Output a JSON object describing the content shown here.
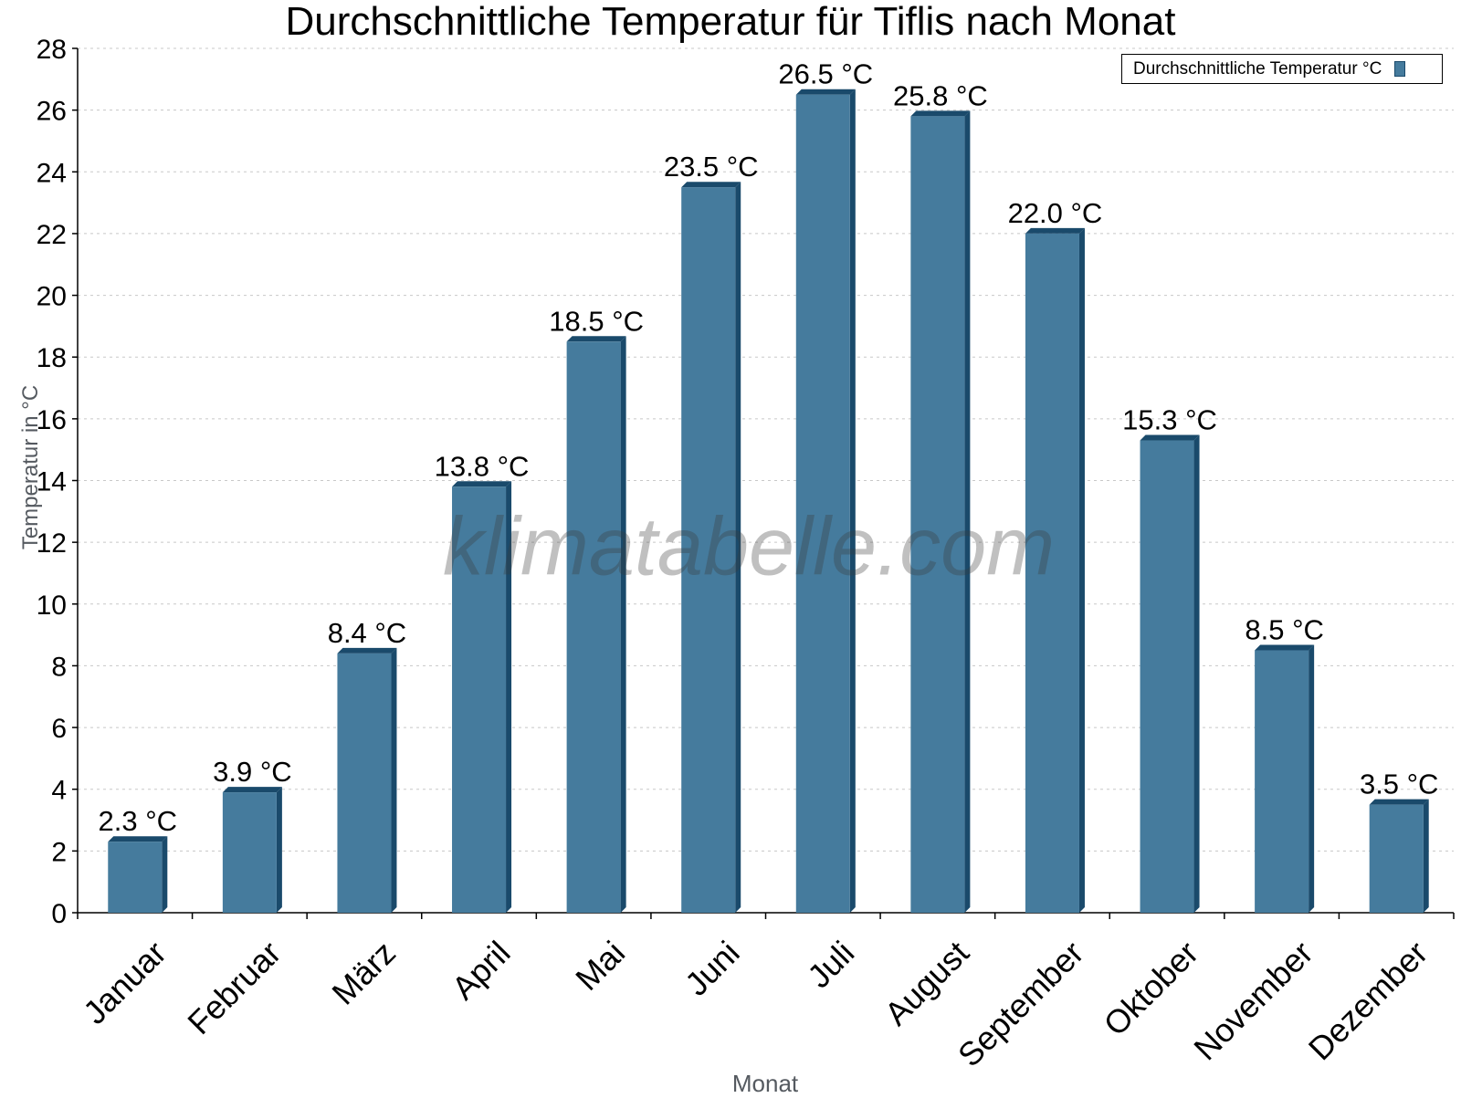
{
  "chart_data": {
    "type": "bar",
    "title": "Durchschnittliche Temperatur für Tiflis nach Monat",
    "xlabel": "Monat",
    "ylabel": "Temperatur in °C",
    "ylim": [
      0,
      28
    ],
    "yticks": [
      0,
      2,
      4,
      6,
      8,
      10,
      12,
      14,
      16,
      18,
      20,
      22,
      24,
      26,
      28
    ],
    "grid": true,
    "legend_position": "top-right",
    "categories": [
      "Januar",
      "Februar",
      "März",
      "April",
      "Mai",
      "Juni",
      "Juli",
      "August",
      "September",
      "Oktober",
      "November",
      "Dezember"
    ],
    "series": [
      {
        "name": "Durchschnittliche Temperatur °C",
        "values": [
          2.3,
          3.9,
          8.4,
          13.8,
          18.5,
          23.5,
          26.5,
          25.8,
          22.0,
          15.3,
          8.5,
          3.5
        ],
        "labels": [
          "2.3 °C",
          "3.9 °C",
          "8.4 °C",
          "13.8 °C",
          "18.5 °C",
          "23.5 °C",
          "26.5 °C",
          "25.8 °C",
          "22.0 °C",
          "15.3 °C",
          "8.5 °C",
          "3.5 °C"
        ],
        "color": "#457b9d",
        "edge_color": "#1a4a6b"
      }
    ],
    "annotations": [
      "klimatabelle.com"
    ]
  },
  "legend": {
    "label": "Durchschnittliche Temperatur °C"
  },
  "watermark": "klimatabelle.com"
}
